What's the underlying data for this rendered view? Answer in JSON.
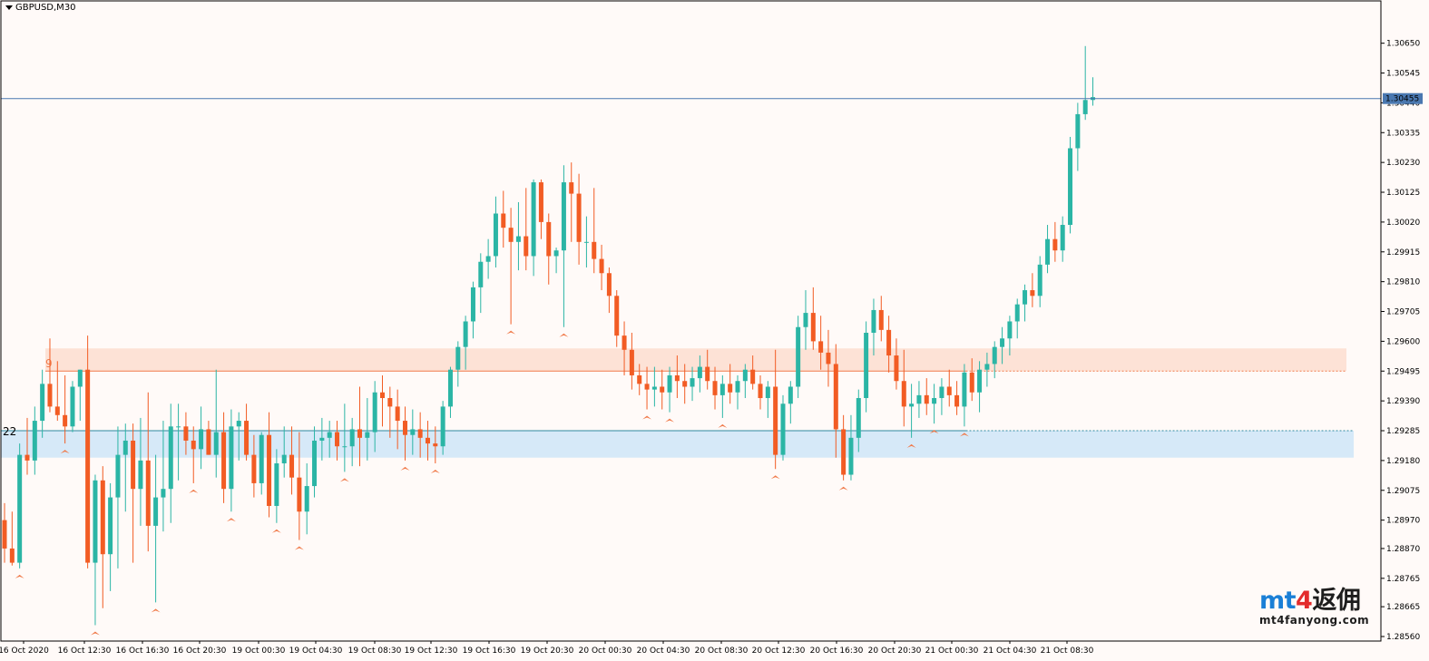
{
  "window": {
    "title": "GBPUSD,M30"
  },
  "colors": {
    "background": "#fffaf8",
    "bull": "#2bb5a5",
    "bear": "#f25c24",
    "axis_line": "#000000",
    "bid_line": "#4a78b0",
    "resistance_zone": "#fde2d6",
    "resistance_line": "#f07a4a",
    "support_zone": "#d6e9f8",
    "support_line": "#2e8aa0",
    "fractal_marker": "#f07a4a"
  },
  "chart_data": {
    "type": "candlestick",
    "symbol": "GBPUSD",
    "timeframe": "M30",
    "ylim": [
      1.2856,
      1.307
    ],
    "price_ticks": [
      "1.30650",
      "1.30545",
      "1.30440",
      "1.30335",
      "1.30230",
      "1.30125",
      "1.30020",
      "1.29915",
      "1.29810",
      "1.29705",
      "1.29600",
      "1.29495",
      "1.29390",
      "1.29285",
      "1.29180",
      "1.29075",
      "1.28970",
      "1.28870",
      "1.28765",
      "1.28665",
      "1.28560"
    ],
    "current_price_label": "1.30455",
    "current_price": 1.30455,
    "time_labels": [
      "16 Oct 2020",
      "16 Oct 12:30",
      "16 Oct 16:30",
      "16 Oct 20:30",
      "19 Oct 00:30",
      "19 Oct 04:30",
      "19 Oct 08:30",
      "19 Oct 12:30",
      "19 Oct 16:30",
      "19 Oct 20:30",
      "20 Oct 00:30",
      "20 Oct 04:30",
      "20 Oct 08:30",
      "20 Oct 12:30",
      "20 Oct 16:30",
      "20 Oct 20:30",
      "21 Oct 00:30",
      "21 Oct 04:30",
      "21 Oct 08:30"
    ],
    "zones": [
      {
        "label": "9",
        "top": 1.29575,
        "bottom": 1.29495,
        "line": 1.29495,
        "color": "#fde2d6",
        "line_color": "#f07a4a",
        "label_color": "#f07a4a"
      },
      {
        "label": "22",
        "top": 1.29285,
        "bottom": 1.2919,
        "line": 1.29285,
        "color": "#d6e9f8",
        "line_color": "#2e8aa0",
        "label_color": "#000000"
      }
    ],
    "candles": [
      [
        1.2897,
        1.2903,
        1.2882,
        1.2887
      ],
      [
        1.2887,
        1.29,
        1.2881,
        1.2882
      ],
      [
        1.2882,
        1.2924,
        1.288,
        1.292
      ],
      [
        1.292,
        1.2933,
        1.2913,
        1.2918
      ],
      [
        1.2918,
        1.2937,
        1.2913,
        1.2932
      ],
      [
        1.2932,
        1.295,
        1.2926,
        1.2945
      ],
      [
        1.2945,
        1.2961,
        1.2935,
        1.2937
      ],
      [
        1.2937,
        1.2953,
        1.2932,
        1.2934
      ],
      [
        1.2934,
        1.2948,
        1.2924,
        1.293
      ],
      [
        1.293,
        1.2946,
        1.2928,
        1.2944
      ],
      [
        1.2944,
        1.295,
        1.2932,
        1.295
      ],
      [
        1.295,
        1.2962,
        1.288,
        1.2882
      ],
      [
        1.2882,
        1.2913,
        1.286,
        1.2911
      ],
      [
        1.2911,
        1.2916,
        1.2866,
        1.2885
      ],
      [
        1.2885,
        1.291,
        1.2872,
        1.2905
      ],
      [
        1.2905,
        1.293,
        1.288,
        1.292
      ],
      [
        1.292,
        1.2931,
        1.29,
        1.2925
      ],
      [
        1.2925,
        1.2931,
        1.2882,
        1.2908
      ],
      [
        1.2908,
        1.2933,
        1.2895,
        1.2918
      ],
      [
        1.2918,
        1.2942,
        1.2886,
        1.2895
      ],
      [
        1.2895,
        1.292,
        1.2868,
        1.2905
      ],
      [
        1.2905,
        1.2932,
        1.2893,
        1.2908
      ],
      [
        1.2908,
        1.2938,
        1.2896,
        1.293
      ],
      [
        1.293,
        1.2938,
        1.2911,
        1.293
      ],
      [
        1.293,
        1.2935,
        1.292,
        1.2925
      ],
      [
        1.2925,
        1.293,
        1.291,
        1.2922
      ],
      [
        1.2922,
        1.2937,
        1.2915,
        1.2929
      ],
      [
        1.2929,
        1.2932,
        1.292,
        1.292
      ],
      [
        1.292,
        1.295,
        1.2912,
        1.2928
      ],
      [
        1.2928,
        1.2935,
        1.2903,
        1.2908
      ],
      [
        1.2908,
        1.2936,
        1.29,
        1.293
      ],
      [
        1.293,
        1.2935,
        1.2918,
        1.2932
      ],
      [
        1.2932,
        1.2938,
        1.2918,
        1.292
      ],
      [
        1.292,
        1.2927,
        1.2905,
        1.291
      ],
      [
        1.291,
        1.2928,
        1.2906,
        1.2927
      ],
      [
        1.2927,
        1.2935,
        1.2898,
        1.2902
      ],
      [
        1.2902,
        1.2922,
        1.2896,
        1.2917
      ],
      [
        1.2917,
        1.293,
        1.2912,
        1.292
      ],
      [
        1.292,
        1.293,
        1.2906,
        1.2912
      ],
      [
        1.2912,
        1.2928,
        1.289,
        1.29
      ],
      [
        1.29,
        1.2917,
        1.2892,
        1.2909
      ],
      [
        1.2909,
        1.293,
        1.2905,
        1.2925
      ],
      [
        1.2925,
        1.2933,
        1.2918,
        1.2926
      ],
      [
        1.2926,
        1.2932,
        1.2919,
        1.2928
      ],
      [
        1.2928,
        1.2932,
        1.2918,
        1.2923
      ],
      [
        1.2923,
        1.2938,
        1.2914,
        1.2923
      ],
      [
        1.2923,
        1.2933,
        1.2916,
        1.2929
      ],
      [
        1.2929,
        1.2944,
        1.2916,
        1.2926
      ],
      [
        1.2926,
        1.294,
        1.2918,
        1.2928
      ],
      [
        1.2928,
        1.2946,
        1.2921,
        1.2942
      ],
      [
        1.2942,
        1.2948,
        1.293,
        1.294
      ],
      [
        1.294,
        1.2944,
        1.2926,
        1.2937
      ],
      [
        1.2937,
        1.2943,
        1.2922,
        1.2932
      ],
      [
        1.2932,
        1.2937,
        1.2918,
        1.2927
      ],
      [
        1.2927,
        1.2936,
        1.292,
        1.2929
      ],
      [
        1.2929,
        1.2935,
        1.2919,
        1.2926
      ],
      [
        1.2926,
        1.2932,
        1.2918,
        1.2924
      ],
      [
        1.2924,
        1.293,
        1.2917,
        1.2923
      ],
      [
        1.2923,
        1.2939,
        1.292,
        1.2937
      ],
      [
        1.2937,
        1.2951,
        1.2933,
        1.295
      ],
      [
        1.295,
        1.296,
        1.2944,
        1.2958
      ],
      [
        1.2958,
        1.2969,
        1.295,
        1.2967
      ],
      [
        1.2967,
        1.2981,
        1.2961,
        1.2979
      ],
      [
        1.2979,
        1.2991,
        1.297,
        1.2988
      ],
      [
        1.2988,
        1.2996,
        1.2982,
        1.299
      ],
      [
        1.299,
        1.3011,
        1.2986,
        1.3005
      ],
      [
        1.3005,
        1.3013,
        1.2993,
        1.3
      ],
      [
        1.3,
        1.3007,
        1.2966,
        1.2995
      ],
      [
        1.2995,
        1.3009,
        1.2985,
        1.2997
      ],
      [
        1.2997,
        1.3014,
        1.2985,
        1.299
      ],
      [
        1.299,
        1.3017,
        1.2983,
        1.3016
      ],
      [
        1.3016,
        1.3017,
        1.2996,
        1.3002
      ],
      [
        1.3002,
        1.3005,
        1.298,
        1.299
      ],
      [
        1.299,
        1.2993,
        1.2984,
        1.2992
      ],
      [
        1.2992,
        1.3022,
        1.2965,
        1.3016
      ],
      [
        1.3016,
        1.3023,
        1.2995,
        1.3012
      ],
      [
        1.3012,
        1.3019,
        1.2987,
        1.2995
      ],
      [
        1.2995,
        1.3004,
        1.2986,
        1.2995
      ],
      [
        1.2995,
        1.3014,
        1.2984,
        1.2989
      ],
      [
        1.2989,
        1.2994,
        1.2978,
        1.2984
      ],
      [
        1.2984,
        1.2986,
        1.297,
        1.2976
      ],
      [
        1.2976,
        1.2978,
        1.2958,
        1.2962
      ],
      [
        1.2962,
        1.2967,
        1.2948,
        1.2957
      ],
      [
        1.2957,
        1.2963,
        1.2943,
        1.2948
      ],
      [
        1.2948,
        1.2952,
        1.2941,
        1.2945
      ],
      [
        1.2945,
        1.2951,
        1.2936,
        1.2943
      ],
      [
        1.2943,
        1.2951,
        1.2937,
        1.2944
      ],
      [
        1.2944,
        1.295,
        1.2936,
        1.2942
      ],
      [
        1.2942,
        1.2951,
        1.2935,
        1.2948
      ],
      [
        1.2948,
        1.2955,
        1.294,
        1.2946
      ],
      [
        1.2946,
        1.2952,
        1.2938,
        1.2944
      ],
      [
        1.2944,
        1.2951,
        1.2939,
        1.2947
      ],
      [
        1.2947,
        1.2955,
        1.2942,
        1.2951
      ],
      [
        1.2951,
        1.2957,
        1.2943,
        1.2946
      ],
      [
        1.2946,
        1.2951,
        1.2936,
        1.2941
      ],
      [
        1.2941,
        1.2948,
        1.2933,
        1.2945
      ],
      [
        1.2945,
        1.2952,
        1.2938,
        1.2942
      ],
      [
        1.2942,
        1.2948,
        1.2936,
        1.2946
      ],
      [
        1.2946,
        1.2952,
        1.294,
        1.295
      ],
      [
        1.295,
        1.2955,
        1.2943,
        1.2945
      ],
      [
        1.2945,
        1.2948,
        1.2936,
        1.294
      ],
      [
        1.294,
        1.2946,
        1.2933,
        1.2944
      ],
      [
        1.2944,
        1.2957,
        1.2915,
        1.292
      ],
      [
        1.292,
        1.2941,
        1.2918,
        1.2938
      ],
      [
        1.2938,
        1.2946,
        1.2931,
        1.2944
      ],
      [
        1.2944,
        1.2969,
        1.294,
        1.2965
      ],
      [
        1.2965,
        1.2978,
        1.2957,
        1.297
      ],
      [
        1.297,
        1.2979,
        1.2957,
        1.296
      ],
      [
        1.296,
        1.2969,
        1.295,
        1.2956
      ],
      [
        1.2956,
        1.2964,
        1.2944,
        1.2952
      ],
      [
        1.2952,
        1.2959,
        1.2919,
        1.2929
      ],
      [
        1.2929,
        1.2934,
        1.2911,
        1.2913
      ],
      [
        1.2913,
        1.2934,
        1.2911,
        1.2926
      ],
      [
        1.2926,
        1.2943,
        1.2921,
        1.294
      ],
      [
        1.294,
        1.2967,
        1.2935,
        1.2963
      ],
      [
        1.2963,
        1.2975,
        1.2955,
        1.2971
      ],
      [
        1.2971,
        1.2976,
        1.296,
        1.2964
      ],
      [
        1.2964,
        1.2969,
        1.2949,
        1.2955
      ],
      [
        1.2955,
        1.2961,
        1.2943,
        1.2946
      ],
      [
        1.2946,
        1.2957,
        1.293,
        1.2937
      ],
      [
        1.2937,
        1.2945,
        1.2926,
        1.2938
      ],
      [
        1.2938,
        1.2946,
        1.2933,
        1.2941
      ],
      [
        1.2941,
        1.2947,
        1.2934,
        1.2938
      ],
      [
        1.2938,
        1.2945,
        1.2931,
        1.294
      ],
      [
        1.294,
        1.2947,
        1.2934,
        1.2944
      ],
      [
        1.2944,
        1.295,
        1.2937,
        1.2941
      ],
      [
        1.2941,
        1.2946,
        1.2934,
        1.2937
      ],
      [
        1.2937,
        1.2952,
        1.293,
        1.2949
      ],
      [
        1.2949,
        1.2954,
        1.2939,
        1.2942
      ],
      [
        1.2942,
        1.2953,
        1.2935,
        1.295
      ],
      [
        1.295,
        1.2956,
        1.2944,
        1.2952
      ],
      [
        1.2952,
        1.296,
        1.2947,
        1.2958
      ],
      [
        1.2958,
        1.2965,
        1.2952,
        1.2961
      ],
      [
        1.2961,
        1.2969,
        1.2955,
        1.2967
      ],
      [
        1.2967,
        1.2975,
        1.2961,
        1.2973
      ],
      [
        1.2973,
        1.298,
        1.2967,
        1.2978
      ],
      [
        1.2978,
        1.2984,
        1.2972,
        1.2976
      ],
      [
        1.2976,
        1.299,
        1.2972,
        1.2987
      ],
      [
        1.2987,
        1.3001,
        1.2984,
        1.2996
      ],
      [
        1.2996,
        1.3002,
        1.2988,
        1.2992
      ],
      [
        1.2992,
        1.3004,
        1.2988,
        1.3001
      ],
      [
        1.3001,
        1.3032,
        1.2998,
        1.3028
      ],
      [
        1.3028,
        1.3044,
        1.302,
        1.304
      ],
      [
        1.304,
        1.3064,
        1.3038,
        1.3045
      ],
      [
        1.3045,
        1.3053,
        1.3043,
        1.3046
      ]
    ]
  },
  "watermark": {
    "brand_a": "mt",
    "brand_b": "4",
    "brand_c": "返佣",
    "url": "mt4fanyong.com"
  }
}
